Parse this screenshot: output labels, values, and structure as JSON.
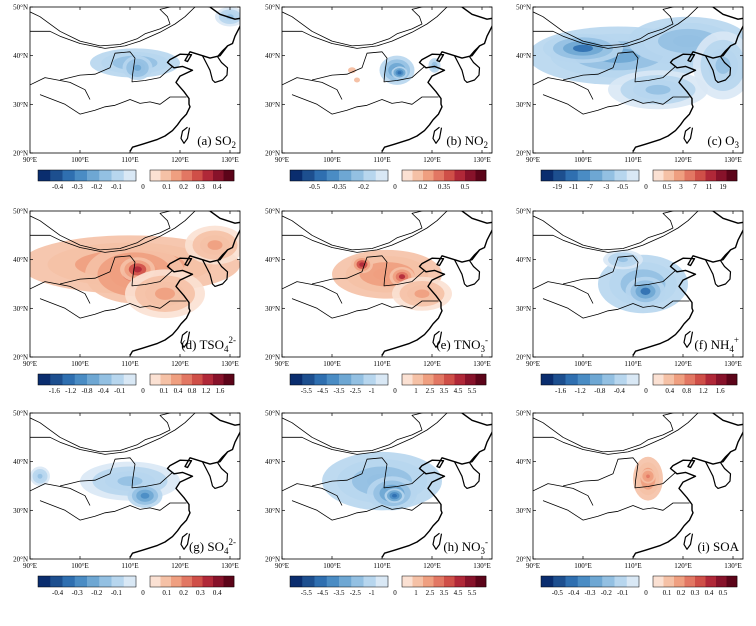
{
  "map": {
    "lon_ticks": [
      "90°E",
      "100°E",
      "110°E",
      "120°E",
      "130°E"
    ],
    "lat_ticks": [
      "50°N",
      "40°N",
      "30°N",
      "20°N"
    ]
  },
  "panels": [
    {
      "id": "a",
      "label": "(a) SO",
      "sub": "2",
      "sup": "",
      "cbar_neg": [
        "-0.4",
        "-0.3",
        "-0.2",
        "-0.1"
      ],
      "cbar_pos": [
        "0",
        "0.1",
        "0.2",
        "0.3",
        "0.4"
      ],
      "field": "neg",
      "blobs": [
        {
          "lon": 111,
          "lat": 38.5,
          "rx": 9,
          "ry": 3,
          "a": 0.35
        },
        {
          "lon": 111.5,
          "lat": 37.5,
          "rx": 3,
          "ry": 2.5,
          "a": 0.55
        },
        {
          "lon": 130,
          "lat": 48,
          "rx": 3,
          "ry": 2,
          "a": 0.3
        }
      ]
    },
    {
      "id": "b",
      "label": "(b) NO",
      "sub": "2",
      "sup": "",
      "cbar_neg": [
        "-0.5",
        "-0.35",
        "-0.2"
      ],
      "cbar_pos": [
        "0",
        "0.2",
        "0.35",
        "0.5"
      ],
      "field": "neg",
      "blobs": [
        {
          "lon": 113,
          "lat": 37,
          "rx": 3.5,
          "ry": 3,
          "a": 0.6
        },
        {
          "lon": 113.5,
          "lat": 36.5,
          "rx": 1.6,
          "ry": 1.3,
          "a": 0.9
        },
        {
          "lon": 120.5,
          "lat": 38,
          "rx": 1.2,
          "ry": 1.5,
          "a": 0.35
        }
      ],
      "posblobs": [
        {
          "lon": 104,
          "lat": 37,
          "rx": 0.8,
          "ry": 0.6,
          "a": 0.5
        },
        {
          "lon": 105,
          "lat": 35,
          "rx": 0.6,
          "ry": 0.5,
          "a": 0.5
        }
      ]
    },
    {
      "id": "c",
      "label": "(c) O",
      "sub": "3",
      "sup": "",
      "cbar_neg": [
        "-19",
        "-11",
        "-7",
        "-3",
        "-0.5"
      ],
      "cbar_pos": [
        "0",
        "0.5",
        "3",
        "7",
        "11",
        "19"
      ],
      "field": "neg",
      "blobs": [
        {
          "lon": 107,
          "lat": 40,
          "rx": 18,
          "ry": 6,
          "a": 0.45
        },
        {
          "lon": 100,
          "lat": 41.5,
          "rx": 8,
          "ry": 3,
          "a": 0.75
        },
        {
          "lon": 121,
          "lat": 43,
          "rx": 12,
          "ry": 5,
          "a": 0.35
        },
        {
          "lon": 115,
          "lat": 33,
          "rx": 10,
          "ry": 4,
          "a": 0.25
        },
        {
          "lon": 128,
          "lat": 38,
          "rx": 6,
          "ry": 7,
          "a": 0.25
        }
      ]
    },
    {
      "id": "d",
      "label": "(d) TSO",
      "sub": "4",
      "sup": "2-",
      "cbar_neg": [
        "-1.6",
        "-1.2",
        "-0.8",
        "-0.4",
        "-0.1"
      ],
      "cbar_pos": [
        "0",
        "0.1",
        "0.4",
        "0.8",
        "1.2",
        "1.6"
      ],
      "field": "pos",
      "blobs": [
        {
          "lon": 110,
          "lat": 39,
          "rx": 22,
          "ry": 6,
          "a": 0.35
        },
        {
          "lon": 111,
          "lat": 37,
          "rx": 10,
          "ry": 6,
          "a": 0.5
        },
        {
          "lon": 111.5,
          "lat": 38,
          "rx": 3.5,
          "ry": 2.5,
          "a": 0.8
        },
        {
          "lon": 117,
          "lat": 33,
          "rx": 8,
          "ry": 5,
          "a": 0.3
        },
        {
          "lon": 127,
          "lat": 43,
          "rx": 6,
          "ry": 4,
          "a": 0.3
        }
      ]
    },
    {
      "id": "e",
      "label": "(e) TNO",
      "sub": "3",
      "sup": "-",
      "cbar_neg": [
        "-5.5",
        "-4.5",
        "-3.5",
        "-2.5",
        "-1"
      ],
      "cbar_pos": [
        "0",
        "1",
        "2.5",
        "3.5",
        "4.5",
        "5.5"
      ],
      "field": "pos",
      "blobs": [
        {
          "lon": 111,
          "lat": 37,
          "rx": 11,
          "ry": 5,
          "a": 0.4
        },
        {
          "lon": 106,
          "lat": 39,
          "rx": 2.2,
          "ry": 1.8,
          "a": 0.8
        },
        {
          "lon": 114,
          "lat": 36.5,
          "rx": 2.5,
          "ry": 2,
          "a": 0.75
        },
        {
          "lon": 118,
          "lat": 33,
          "rx": 6,
          "ry": 3.5,
          "a": 0.3
        }
      ]
    },
    {
      "id": "f",
      "label": "(f) NH",
      "sub": "4",
      "sup": "+",
      "cbar_neg": [
        "-1.6",
        "-1.2",
        "-0.8",
        "-0.4"
      ],
      "cbar_pos": [
        "0",
        "0.4",
        "0.8",
        "1.2",
        "1.6"
      ],
      "field": "neg",
      "blobs": [
        {
          "lon": 112,
          "lat": 35,
          "rx": 9,
          "ry": 6,
          "a": 0.4
        },
        {
          "lon": 112.5,
          "lat": 33.5,
          "rx": 4,
          "ry": 3,
          "a": 0.75
        },
        {
          "lon": 108,
          "lat": 40,
          "rx": 4,
          "ry": 2,
          "a": 0.3
        }
      ]
    },
    {
      "id": "g",
      "label": "(g) SO",
      "sub": "4",
      "sup": "2-",
      "cbar_neg": [
        "-0.4",
        "-0.3",
        "-0.2",
        "-0.1"
      ],
      "cbar_pos": [
        "0",
        "0.1",
        "0.2",
        "0.3",
        "0.4"
      ],
      "field": "neg",
      "blobs": [
        {
          "lon": 110,
          "lat": 36,
          "rx": 10,
          "ry": 4,
          "a": 0.3
        },
        {
          "lon": 113,
          "lat": 33,
          "rx": 3.5,
          "ry": 2.5,
          "a": 0.6
        },
        {
          "lon": 92,
          "lat": 37,
          "rx": 2,
          "ry": 2,
          "a": 0.25
        }
      ]
    },
    {
      "id": "h",
      "label": "(h) NO",
      "sub": "3",
      "sup": "-",
      "cbar_neg": [
        "-5.5",
        "-4.5",
        "-3.5",
        "-2.5",
        "-1"
      ],
      "cbar_pos": [
        "0",
        "1",
        "2.5",
        "3.5",
        "4.5",
        "5.5"
      ],
      "field": "neg",
      "blobs": [
        {
          "lon": 110,
          "lat": 36,
          "rx": 12,
          "ry": 6,
          "a": 0.35
        },
        {
          "lon": 112,
          "lat": 33.5,
          "rx": 5,
          "ry": 3.5,
          "a": 0.6
        },
        {
          "lon": 112.5,
          "lat": 33,
          "rx": 2,
          "ry": 1.5,
          "a": 0.85
        }
      ]
    },
    {
      "id": "i",
      "label": "(i) SOA",
      "sub": "",
      "sup": "",
      "cbar_neg": [
        "-0.5",
        "-0.4",
        "-0.3",
        "-0.2",
        "-0.1"
      ],
      "cbar_pos": [
        "0",
        "0.1",
        "0.2",
        "0.3",
        "0.4",
        "0.5"
      ],
      "field": "pos",
      "blobs": [
        {
          "lon": 113,
          "lat": 36.5,
          "rx": 3,
          "ry": 4.5,
          "a": 0.4
        },
        {
          "lon": 113,
          "lat": 37,
          "rx": 1.5,
          "ry": 1.5,
          "a": 0.55
        }
      ]
    }
  ],
  "colors": {
    "neg": [
      "#0a2d6e",
      "#1d4f8f",
      "#2f6fb0",
      "#4a8cc4",
      "#6ea7d3",
      "#93c0e2",
      "#b7d6ee",
      "#d9e8f5"
    ],
    "pos": [
      "#fbe1d3",
      "#f5c1a6",
      "#ef9f80",
      "#e27763",
      "#cf4f48",
      "#b02838",
      "#87122a",
      "#5c0419"
    ],
    "land_line": "#000000"
  }
}
